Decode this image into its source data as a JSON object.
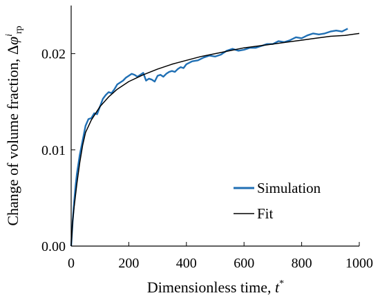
{
  "chart_data": {
    "type": "line",
    "xlabel": "Dimensionless time, t*",
    "ylabel": "Change of volume fraction, Δφirp",
    "xlabel_parts": {
      "text": "Dimensionless time, ",
      "var": "t",
      "sup": "*"
    },
    "ylabel_parts": {
      "text": "Change of volume fraction, Δ",
      "var": "φ",
      "sup": "i",
      "sub": "rp"
    },
    "xlim": [
      0,
      1000
    ],
    "ylim": [
      0,
      0.025
    ],
    "xticks": [
      0,
      200,
      400,
      600,
      800,
      1000
    ],
    "xtick_labels": [
      "0",
      "200",
      "400",
      "600",
      "800",
      "1000"
    ],
    "yticks": [
      0,
      0.01,
      0.02
    ],
    "ytick_labels": [
      "0.00",
      "0.01",
      "0.02"
    ],
    "grid": false,
    "legend_position": "bottom-right",
    "series": [
      {
        "name": "Simulation",
        "color": "#1f6fb4",
        "x": [
          0,
          5,
          10,
          15,
          20,
          30,
          40,
          50,
          60,
          70,
          80,
          90,
          100,
          110,
          120,
          130,
          140,
          150,
          160,
          170,
          180,
          190,
          200,
          210,
          220,
          230,
          240,
          250,
          260,
          270,
          280,
          290,
          300,
          310,
          320,
          330,
          340,
          350,
          360,
          370,
          380,
          390,
          400,
          420,
          440,
          460,
          480,
          500,
          520,
          540,
          560,
          580,
          600,
          620,
          640,
          660,
          680,
          700,
          720,
          740,
          760,
          780,
          800,
          820,
          840,
          860,
          880,
          900,
          920,
          940,
          960
        ],
        "y": [
          0,
          0.0025,
          0.0045,
          0.0062,
          0.0075,
          0.0095,
          0.011,
          0.0125,
          0.0132,
          0.0133,
          0.0138,
          0.0137,
          0.0145,
          0.0153,
          0.0157,
          0.016,
          0.0159,
          0.0163,
          0.0168,
          0.017,
          0.0172,
          0.0175,
          0.0177,
          0.0179,
          0.0178,
          0.0176,
          0.0178,
          0.018,
          0.0172,
          0.0174,
          0.0173,
          0.0171,
          0.0177,
          0.0178,
          0.0176,
          0.0179,
          0.0181,
          0.0182,
          0.0181,
          0.0184,
          0.0186,
          0.0185,
          0.0189,
          0.0192,
          0.0193,
          0.0196,
          0.0198,
          0.0197,
          0.0199,
          0.0203,
          0.0205,
          0.0203,
          0.0204,
          0.0206,
          0.0206,
          0.0208,
          0.021,
          0.021,
          0.0213,
          0.0212,
          0.0214,
          0.0217,
          0.0216,
          0.0219,
          0.0221,
          0.022,
          0.0221,
          0.0223,
          0.0224,
          0.0223,
          0.0226
        ]
      },
      {
        "name": "Fit",
        "color": "#000000",
        "x": [
          0,
          5,
          10,
          20,
          30,
          40,
          50,
          70,
          100,
          130,
          160,
          200,
          250,
          300,
          350,
          400,
          450,
          500,
          550,
          600,
          650,
          700,
          750,
          800,
          850,
          900,
          950,
          1000
        ],
        "y": [
          0,
          0.0025,
          0.004,
          0.0065,
          0.0087,
          0.0105,
          0.0118,
          0.0131,
          0.0145,
          0.0155,
          0.0163,
          0.0171,
          0.0178,
          0.0184,
          0.0189,
          0.0193,
          0.0197,
          0.02,
          0.0203,
          0.0206,
          0.0208,
          0.021,
          0.0212,
          0.0214,
          0.0216,
          0.0218,
          0.0219,
          0.0221
        ]
      }
    ]
  }
}
